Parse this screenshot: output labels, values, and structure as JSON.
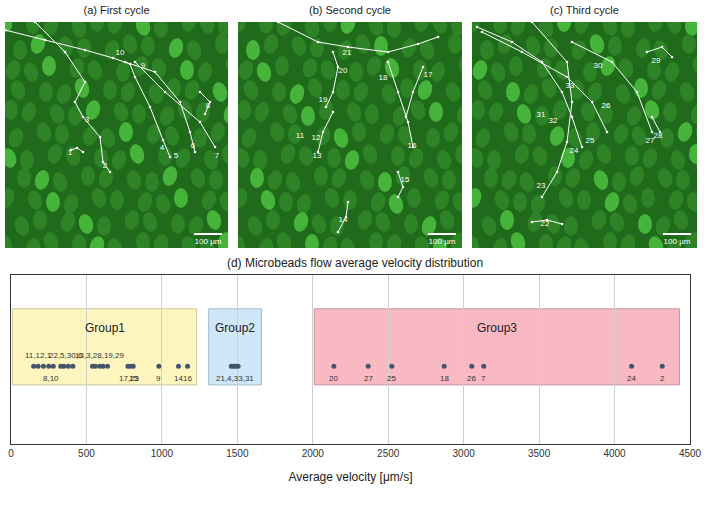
{
  "chart_data": {
    "type": "scatter",
    "title": "(d) Microbeads flow average velocity distribution",
    "x_label": "Average velocity [μm/s]",
    "xlim": [
      0,
      4500
    ],
    "xticks": [
      0,
      500,
      1000,
      1500,
      2000,
      2500,
      3000,
      3500,
      4000,
      4500
    ],
    "grid": true,
    "tick_labels": "x",
    "color": "#44546a",
    "groups": [
      {
        "name": "Group1",
        "range": [
          10,
          1230
        ],
        "color": "#fff6bf"
      },
      {
        "name": "Group2",
        "range": [
          1310,
          1660
        ],
        "color": "#cfe7f8"
      },
      {
        "name": "Group3",
        "range": [
          2010,
          4430
        ],
        "color": "#f9b9c2"
      }
    ],
    "clusters": [
      {
        "label": "11,12,1",
        "values": [
          150,
          180,
          215
        ]
      },
      {
        "label": "8,10",
        "values": [
          250,
          280
        ]
      },
      {
        "label": "22,5,30,6",
        "values": [
          330,
          350,
          380,
          410
        ]
      },
      {
        "label": "13,3,28,19,29",
        "values": [
          540,
          560,
          590,
          610,
          640
        ]
      },
      {
        "label": "15",
        "values": [
          810
        ]
      },
      {
        "label": "17,23",
        "values": [
          775,
          790
        ]
      },
      {
        "label": "9",
        "values": [
          980
        ]
      },
      {
        "label": "14",
        "values": [
          1110
        ]
      },
      {
        "label": "16",
        "values": [
          1170
        ]
      },
      {
        "label": "21,4,33,31",
        "values": [
          1460,
          1475,
          1490,
          1505
        ]
      },
      {
        "label": "20",
        "values": [
          2140
        ]
      },
      {
        "label": "27",
        "values": [
          2367
        ]
      },
      {
        "label": "25",
        "values": [
          2524
        ]
      },
      {
        "label": "18",
        "values": [
          2871
        ]
      },
      {
        "label": "26",
        "values": [
          3054
        ]
      },
      {
        "label": "7",
        "values": [
          3133
        ]
      },
      {
        "label": "24",
        "values": [
          4113
        ]
      },
      {
        "label": "2",
        "values": [
          4316
        ]
      }
    ]
  },
  "panels": [
    {
      "title": "(a) First cycle",
      "scale_bar": "100 µm",
      "labels": [
        "10",
        "9",
        "8",
        "3",
        "1",
        "2",
        "4",
        "5",
        "6",
        "7"
      ]
    },
    {
      "title": "(b) Second cycle",
      "scale_bar": "100 µm",
      "labels": [
        "21",
        "20",
        "18",
        "17",
        "19",
        "11",
        "12",
        "13",
        "16",
        "15",
        "14"
      ]
    },
    {
      "title": "(c) Third cycle",
      "scale_bar": "100 µm",
      "labels": [
        "30",
        "29",
        "33",
        "26",
        "31",
        "32",
        "28",
        "25",
        "27",
        "24",
        "23",
        "22"
      ]
    }
  ]
}
